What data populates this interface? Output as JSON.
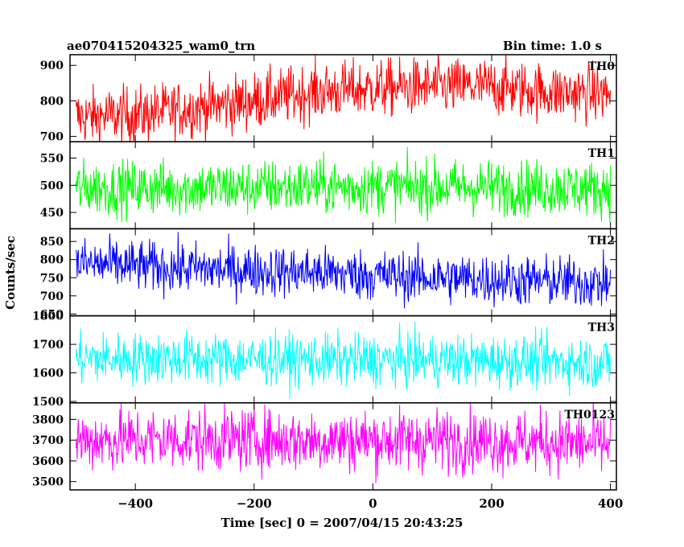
{
  "chart_data": {
    "type": "line",
    "title": "ae070415204325_wam0_trn",
    "bin_time_label": "Bin time: 1.0 s",
    "xlabel": "Time [sec] 0 = 2007/04/15 20:43:25",
    "ylabel": "Counts/sec",
    "xlim": [
      -510,
      410
    ],
    "x_ticks": [
      -400,
      -200,
      0,
      200,
      400
    ],
    "x_tick_labels": [
      "−400",
      "−200",
      "0",
      "200",
      "400"
    ],
    "x_range": [
      -500,
      400
    ],
    "panels": [
      {
        "name": "TH0",
        "color": "#ff0000",
        "ylim": [
          685,
          930
        ],
        "y_ticks": [
          700,
          800,
          900
        ],
        "y_tick_labels": [
          "700",
          "800",
          "900"
        ],
        "trend": [
          [
            -500,
            755
          ],
          [
            -400,
            760
          ],
          [
            -300,
            780
          ],
          [
            -200,
            800
          ],
          [
            -100,
            825
          ],
          [
            0,
            835
          ],
          [
            100,
            840
          ],
          [
            200,
            840
          ],
          [
            300,
            825
          ],
          [
            400,
            820
          ]
        ],
        "noise": 40
      },
      {
        "name": "TH1",
        "color": "#00ff00",
        "ylim": [
          420,
          580
        ],
        "y_ticks": [
          450,
          500,
          550
        ],
        "y_tick_labels": [
          "450",
          "500",
          "550"
        ],
        "trend": [
          [
            -500,
            495
          ],
          [
            -300,
            495
          ],
          [
            -100,
            497
          ],
          [
            100,
            497
          ],
          [
            300,
            495
          ],
          [
            400,
            493
          ]
        ],
        "noise": 25
      },
      {
        "name": "TH2",
        "color": "#0000ff",
        "ylim": [
          645,
          885
        ],
        "y_ticks": [
          650,
          700,
          750,
          800,
          850
        ],
        "y_tick_labels": [
          "650",
          "700",
          "750",
          "800",
          "850"
        ],
        "trend": [
          [
            -500,
            790
          ],
          [
            -300,
            775
          ],
          [
            -100,
            765
          ],
          [
            100,
            750
          ],
          [
            300,
            740
          ],
          [
            400,
            735
          ]
        ],
        "noise": 35
      },
      {
        "name": "TH3",
        "color": "#00ffff",
        "ylim": [
          1495,
          1800
        ],
        "y_ticks": [
          1500,
          1600,
          1700,
          1800
        ],
        "y_tick_labels": [
          "1500",
          "1600",
          "1700",
          "1800"
        ],
        "trend": [
          [
            -500,
            1650
          ],
          [
            -300,
            1650
          ],
          [
            -100,
            1645
          ],
          [
            100,
            1645
          ],
          [
            300,
            1640
          ],
          [
            400,
            1635
          ]
        ],
        "noise": 45
      },
      {
        "name": "TH0123",
        "color": "#ff00ff",
        "ylim": [
          3460,
          3880
        ],
        "y_ticks": [
          3500,
          3600,
          3700,
          3800
        ],
        "y_tick_labels": [
          "3500",
          "3600",
          "3700",
          "3800"
        ],
        "trend": [
          [
            -500,
            3700
          ],
          [
            -300,
            3705
          ],
          [
            -100,
            3700
          ],
          [
            100,
            3700
          ],
          [
            300,
            3690
          ],
          [
            400,
            3680
          ]
        ],
        "noise": 75
      }
    ]
  }
}
